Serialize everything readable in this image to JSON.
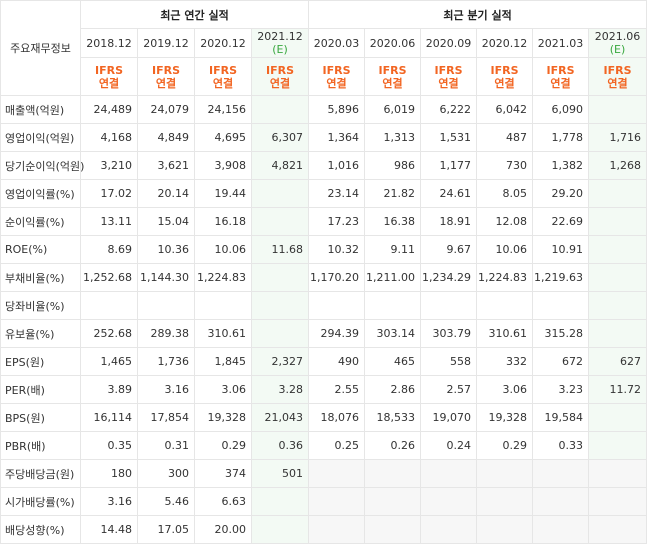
{
  "corner_label": "주요재무정보",
  "annual_group_label": "최근 연간 실적",
  "quarter_group_label": "최근 분기 실적",
  "periods": [
    {
      "label": "2018.12",
      "est": ""
    },
    {
      "label": "2019.12",
      "est": ""
    },
    {
      "label": "2020.12",
      "est": ""
    },
    {
      "label": "2021.12",
      "est": "(E)"
    },
    {
      "label": "2020.03",
      "est": ""
    },
    {
      "label": "2020.06",
      "est": ""
    },
    {
      "label": "2020.09",
      "est": ""
    },
    {
      "label": "2020.12",
      "est": ""
    },
    {
      "label": "2021.03",
      "est": ""
    },
    {
      "label": "2021.06",
      "est": "(E)"
    }
  ],
  "ifrs_line1": "IFRS",
  "ifrs_line2": "연결",
  "rows": [
    {
      "label": "매출액(억원)",
      "values": [
        "24,489",
        "24,079",
        "24,156",
        "",
        "5,896",
        "6,019",
        "6,222",
        "6,042",
        "6,090",
        ""
      ]
    },
    {
      "label": "영업이익(억원)",
      "values": [
        "4,168",
        "4,849",
        "4,695",
        "6,307",
        "1,364",
        "1,313",
        "1,531",
        "487",
        "1,778",
        "1,716"
      ]
    },
    {
      "label": "당기순이익(억원)",
      "values": [
        "3,210",
        "3,621",
        "3,908",
        "4,821",
        "1,016",
        "986",
        "1,177",
        "730",
        "1,382",
        "1,268"
      ]
    },
    {
      "label": "영업이익률(%)",
      "values": [
        "17.02",
        "20.14",
        "19.44",
        "",
        "23.14",
        "21.82",
        "24.61",
        "8.05",
        "29.20",
        ""
      ]
    },
    {
      "label": "순이익률(%)",
      "values": [
        "13.11",
        "15.04",
        "16.18",
        "",
        "17.23",
        "16.38",
        "18.91",
        "12.08",
        "22.69",
        ""
      ]
    },
    {
      "label": "ROE(%)",
      "values": [
        "8.69",
        "10.36",
        "10.06",
        "11.68",
        "10.32",
        "9.11",
        "9.67",
        "10.06",
        "10.91",
        ""
      ]
    },
    {
      "label": "부채비율(%)",
      "values": [
        "1,252.68",
        "1,144.30",
        "1,224.83",
        "",
        "1,170.20",
        "1,211.00",
        "1,234.29",
        "1,224.83",
        "1,219.63",
        ""
      ]
    },
    {
      "label": "당좌비율(%)",
      "values": [
        "",
        "",
        "",
        "",
        "",
        "",
        "",
        "",
        "",
        ""
      ]
    },
    {
      "label": "유보율(%)",
      "values": [
        "252.68",
        "289.38",
        "310.61",
        "",
        "294.39",
        "303.14",
        "303.79",
        "310.61",
        "315.28",
        ""
      ]
    },
    {
      "label": "EPS(원)",
      "values": [
        "1,465",
        "1,736",
        "1,845",
        "2,327",
        "490",
        "465",
        "558",
        "332",
        "672",
        "627"
      ]
    },
    {
      "label": "PER(배)",
      "values": [
        "3.89",
        "3.16",
        "3.06",
        "3.28",
        "2.55",
        "2.86",
        "2.57",
        "3.06",
        "3.23",
        "11.72"
      ]
    },
    {
      "label": "BPS(원)",
      "values": [
        "16,114",
        "17,854",
        "19,328",
        "21,043",
        "18,076",
        "18,533",
        "19,070",
        "19,328",
        "19,584",
        ""
      ]
    },
    {
      "label": "PBR(배)",
      "values": [
        "0.35",
        "0.31",
        "0.29",
        "0.36",
        "0.25",
        "0.26",
        "0.24",
        "0.29",
        "0.33",
        ""
      ]
    },
    {
      "label": "주당배당금(원)",
      "values": [
        "180",
        "300",
        "374",
        "501",
        "",
        "",
        "",
        "",
        "",
        ""
      ]
    },
    {
      "label": "시가배당률(%)",
      "values": [
        "3.16",
        "5.46",
        "6.63",
        "",
        "",
        "",
        "",
        "",
        "",
        ""
      ]
    },
    {
      "label": "배당성향(%)",
      "values": [
        "14.48",
        "17.05",
        "20.00",
        "",
        "",
        "",
        "",
        "",
        "",
        ""
      ]
    }
  ]
}
